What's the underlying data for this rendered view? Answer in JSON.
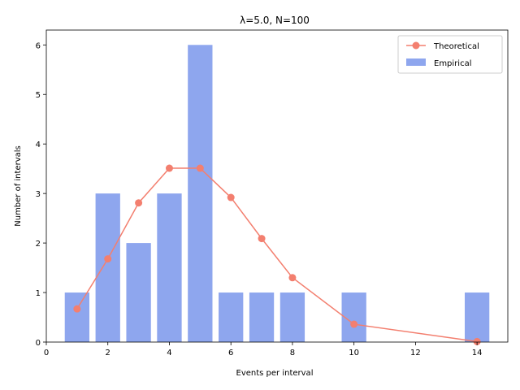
{
  "chart_data": {
    "type": "bar",
    "title": "λ=5.0, N=100",
    "xlabel": "Events per interval",
    "ylabel": "Number of intervals",
    "xlim": [
      0,
      15
    ],
    "ylim": [
      0,
      6.3
    ],
    "xticks": [
      0,
      2,
      4,
      6,
      8,
      10,
      12,
      14
    ],
    "yticks": [
      0,
      1,
      2,
      3,
      4,
      5,
      6
    ],
    "grid": false,
    "legend_position": "top-right",
    "series": [
      {
        "name": "Empirical",
        "type": "bar",
        "color": "#8ea6ee",
        "x": [
          1,
          2,
          3,
          4,
          5,
          6,
          7,
          8,
          10,
          14
        ],
        "values": [
          1,
          3,
          2,
          3,
          6,
          1,
          1,
          1,
          1,
          1
        ]
      },
      {
        "name": "Theoretical",
        "type": "line",
        "color": "#f37f6f",
        "marker": "circle",
        "x": [
          1,
          2,
          3,
          4,
          5,
          6,
          7,
          8,
          10,
          14
        ],
        "values": [
          0.67,
          1.68,
          2.81,
          3.51,
          3.51,
          2.92,
          2.09,
          1.3,
          0.36,
          0.01
        ]
      }
    ]
  }
}
